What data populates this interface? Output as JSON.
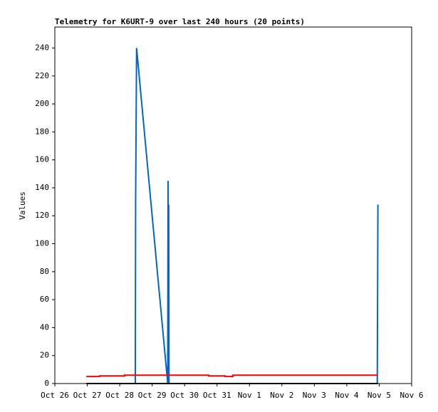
{
  "chart_data": {
    "type": "line",
    "title": "Telemetry for K6URT-9 over last 240 hours (20 points)",
    "ylabel": "Values",
    "xlim": [
      0,
      11
    ],
    "ylim": [
      0,
      255
    ],
    "xticks": [
      {
        "value": 0,
        "label": "Oct 26"
      },
      {
        "value": 1,
        "label": "Oct 27"
      },
      {
        "value": 2,
        "label": "Oct 28"
      },
      {
        "value": 3,
        "label": "Oct 29"
      },
      {
        "value": 4,
        "label": "Oct 30"
      },
      {
        "value": 5,
        "label": "Oct 31"
      },
      {
        "value": 6,
        "label": "Nov 1"
      },
      {
        "value": 7,
        "label": "Nov 2"
      },
      {
        "value": 8,
        "label": "Nov 3"
      },
      {
        "value": 9,
        "label": "Nov 4"
      },
      {
        "value": 10,
        "label": "Nov 5"
      },
      {
        "value": 11,
        "label": "Nov 6"
      }
    ],
    "yticks": [
      0,
      20,
      40,
      60,
      80,
      100,
      120,
      140,
      160,
      180,
      200,
      220,
      240
    ],
    "series": [
      {
        "color": "#0066cc",
        "x": [
          2.48,
          2.49,
          2.52,
          3.48,
          3.49,
          3.5,
          3.51,
          3.52,
          9.94,
          9.95,
          9.96
        ],
        "values": [
          0,
          128,
          240,
          0,
          145,
          0,
          128,
          0,
          0,
          64,
          128
        ]
      },
      {
        "color": "#ff0000",
        "x": [
          0.97,
          1.38,
          1.38,
          2.15,
          2.15,
          4.74,
          4.74,
          5.25,
          5.25,
          5.49,
          5.49,
          9.96
        ],
        "values": [
          5,
          5,
          5.5,
          5.5,
          6,
          6,
          5.5,
          5.5,
          5,
          5,
          6,
          6
        ]
      },
      {
        "color": "#000000",
        "x": [
          0.97,
          9.96
        ],
        "values": [
          0,
          0
        ]
      }
    ]
  }
}
